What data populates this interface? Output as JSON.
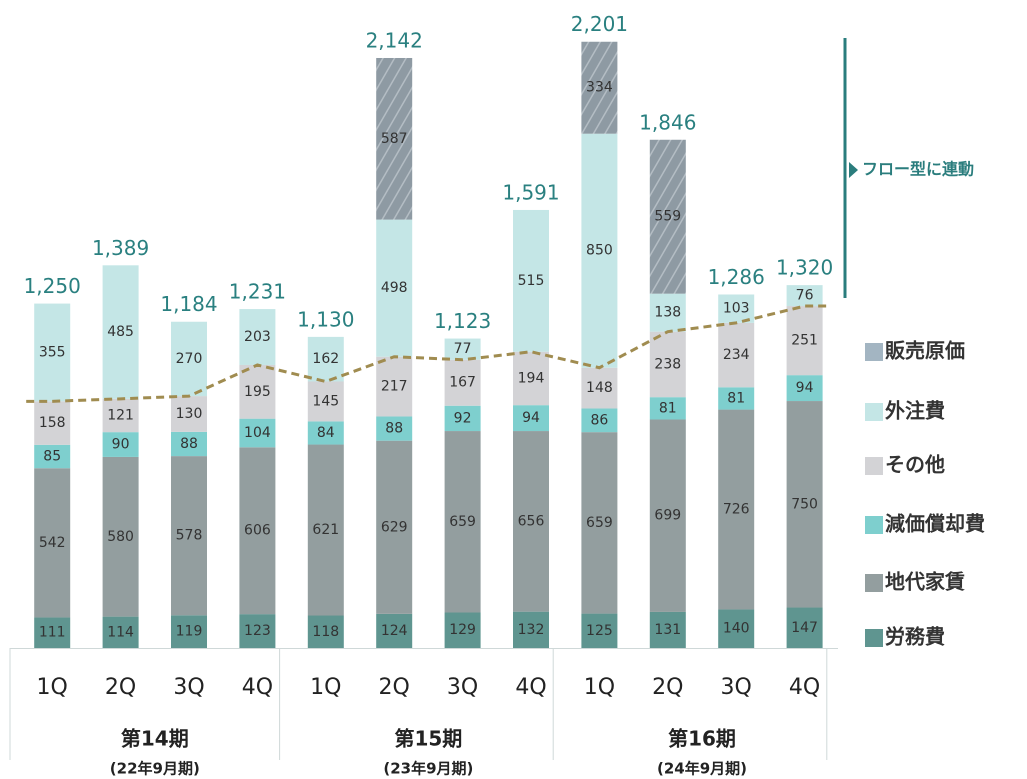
{
  "chart_data": {
    "type": "stacked_bar",
    "categories": [
      "1Q",
      "2Q",
      "3Q",
      "4Q",
      "1Q",
      "2Q",
      "3Q",
      "4Q",
      "1Q",
      "2Q",
      "3Q",
      "4Q"
    ],
    "groups": [
      {
        "name": "第14期",
        "sub": "(22年9月期)"
      },
      {
        "name": "第15期",
        "sub": "(23年9月期)"
      },
      {
        "name": "第16期",
        "sub": "(24年9月期)"
      }
    ],
    "series": [
      {
        "name": "労務費",
        "color": "#5f9590",
        "values": [
          111,
          114,
          119,
          123,
          118,
          124,
          129,
          132,
          125,
          131,
          140,
          147
        ]
      },
      {
        "name": "地代家賃",
        "color": "#939e9f",
        "values": [
          542,
          580,
          578,
          606,
          621,
          629,
          659,
          656,
          659,
          699,
          726,
          750
        ]
      },
      {
        "name": "減価償却費",
        "color": "#7ecfce",
        "values": [
          85,
          90,
          88,
          104,
          84,
          88,
          92,
          94,
          86,
          81,
          81,
          94
        ]
      },
      {
        "name": "その他",
        "color": "#d3d3d6",
        "values": [
          158,
          121,
          130,
          195,
          145,
          217,
          167,
          194,
          148,
          238,
          234,
          251
        ]
      },
      {
        "name": "外注費",
        "color": "#c4e6e6",
        "values": [
          355,
          485,
          270,
          203,
          162,
          498,
          77,
          515,
          850,
          138,
          103,
          76
        ]
      },
      {
        "name": "販売原価",
        "color": "#8e9aa3",
        "legend_color": "#a3b5c2",
        "hatch": true,
        "values": [
          null,
          null,
          null,
          null,
          null,
          587,
          null,
          null,
          334,
          559,
          null,
          null
        ]
      }
    ],
    "totals": [
      1250,
      1389,
      1184,
      1231,
      1130,
      2142,
      1123,
      1591,
      2201,
      1846,
      1286,
      1320
    ],
    "total_labels": [
      "1,250",
      "1,389",
      "1,184",
      "1,231",
      "1,130",
      "2,142",
      "1,123",
      "1,591",
      "2,201",
      "1,846",
      "1,286",
      "1,320"
    ],
    "annotation": "フロー型に連動",
    "ylim": [
      0,
      2350
    ]
  }
}
